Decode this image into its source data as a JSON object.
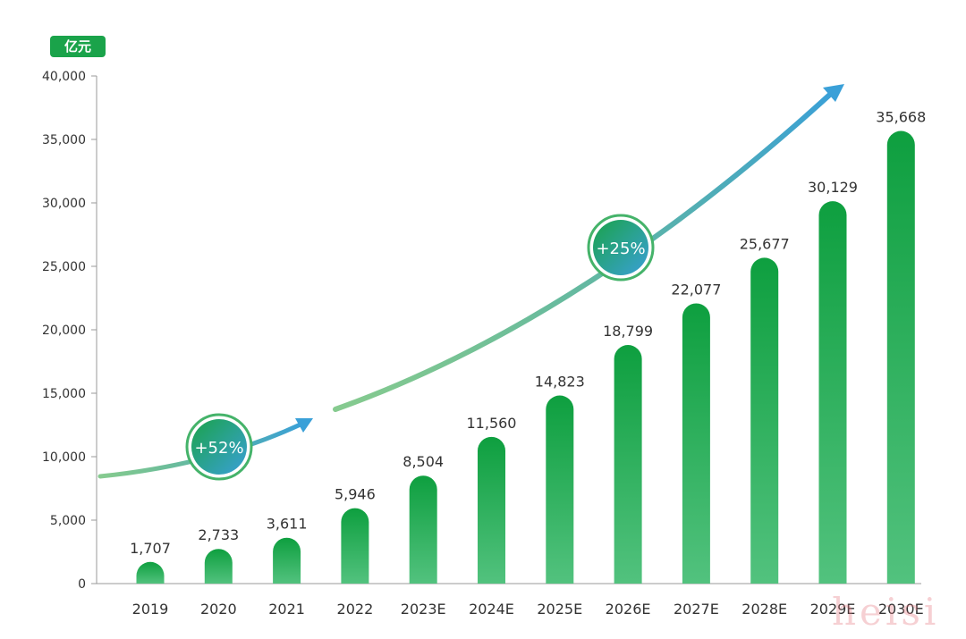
{
  "chart_data": {
    "type": "bar",
    "unit_label": "亿元",
    "categories": [
      "2019",
      "2020",
      "2021",
      "2022",
      "2023E",
      "2024E",
      "2025E",
      "2026E",
      "2027E",
      "2028E",
      "2029E",
      "2030E"
    ],
    "values": [
      1707,
      2733,
      3611,
      5946,
      8504,
      11560,
      14823,
      18799,
      22077,
      25677,
      30129,
      35668
    ],
    "value_labels": [
      "1,707",
      "2,733",
      "3,611",
      "5,946",
      "8,504",
      "11,560",
      "14,823",
      "18,799",
      "22,077",
      "25,677",
      "30,129",
      "35,668"
    ],
    "ylim": [
      0,
      40000
    ],
    "yticks": [
      0,
      5000,
      10000,
      15000,
      20000,
      25000,
      30000,
      35000,
      40000
    ],
    "ytick_labels": [
      "0",
      "5,000",
      "10,000",
      "15,000",
      "20,000",
      "25,000",
      "30,000",
      "35,000",
      "40,000"
    ],
    "grid": false,
    "annotations": [
      {
        "text": "+52%",
        "spans": [
          "2019",
          "2022"
        ]
      },
      {
        "text": "+25%",
        "spans": [
          "2022",
          "2030E"
        ]
      }
    ],
    "colors": {
      "bar": "#0e9f3f",
      "bar_light": "#52c27e",
      "arrow_start": "#36a845",
      "arrow_end": "#3aa0d8"
    }
  },
  "watermark": "heisi"
}
